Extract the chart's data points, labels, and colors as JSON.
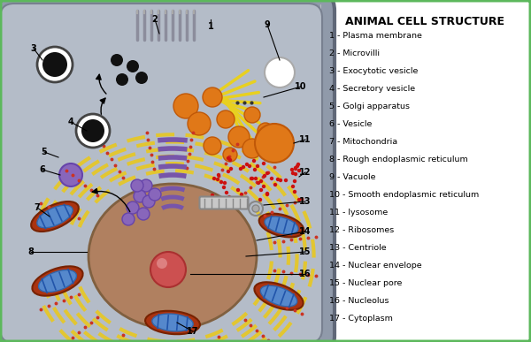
{
  "title": "ANIMAL CELL STRUCTURE",
  "background_color": "#ffffff",
  "border_color": "#5cb85c",
  "legend_items": [
    "1 - Plasma membrane",
    "2 - Microvilli",
    "3 - Exocytotic vesicle",
    "4 - Secretory vesicle",
    "5 - Golgi apparatus",
    "6 - Vesicle",
    "7 - Mitochondria",
    "8 - Rough endoplasmic reticulum",
    "9 - Vacuole",
    "10 - Smooth endoplasmic reticulum",
    "11 - lysosome",
    "12 - Ribosomes",
    "13 - Centriole",
    "14 - Nuclear envelope",
    "15 - Nuclear pore",
    "16 - Nucleolus",
    "17 - Cytoplasm"
  ],
  "cell_outer_color": "#8090a0",
  "cell_inner_color": "#a8b4c0",
  "cell_bg_color": "#b8c0cc",
  "nucleus_color": "#b08060",
  "nucleolus_color": "#cc5050",
  "nuclear_env_color": "#e8c820",
  "rough_er_color_yellow": "#e8c820",
  "rough_er_color_red": "#cc3322",
  "golgi_color": "#7755aa",
  "mito_outer": "#aa3311",
  "mito_inner": "#5588cc",
  "smooth_er_color": "#e8d020",
  "vesicle_black": "#111111",
  "vesicle_orange": "#e07818",
  "ribosome_color": "#cc1111",
  "vacuole_color": "#ffffff",
  "centriole_color": "#aaaaaa"
}
